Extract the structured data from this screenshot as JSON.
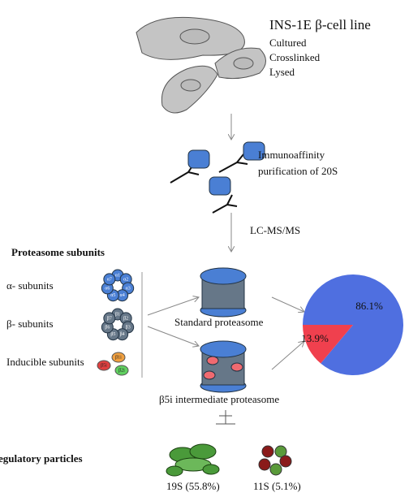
{
  "header": {
    "title": "INS-1E  β-cell line",
    "steps": [
      "Cultured",
      "Crosslinked",
      "Lysed"
    ]
  },
  "purification": {
    "lines": [
      "Immunoaffinity",
      "purification of 20S"
    ]
  },
  "method": "LC-MS/MS",
  "subunits": {
    "title": "Proteasome subunits",
    "alpha_label": "α- subunits",
    "beta_label": "β- subunits",
    "inducible_label": "Inducible subunits",
    "alpha": [
      "α1",
      "α2",
      "α3",
      "α4",
      "α5",
      "α6",
      "α7"
    ],
    "beta": [
      "β1",
      "β2",
      "β3",
      "β4",
      "β5",
      "β6",
      "β7"
    ],
    "inducible": [
      "β5i",
      "β1i",
      "β2i"
    ]
  },
  "standard_label": "Standard proteasome",
  "intermediate_label": "β5i intermediate proteasome",
  "pie": {
    "values": [
      86.1,
      13.9
    ],
    "value_labels": [
      "86.1%",
      "13.9%"
    ],
    "colors": [
      "#4f6fe0",
      "#f0404e"
    ]
  },
  "regulatory": {
    "title": "egulatory particles",
    "particles": [
      "19S (55.8%)",
      "11S (5.1%)"
    ]
  }
}
